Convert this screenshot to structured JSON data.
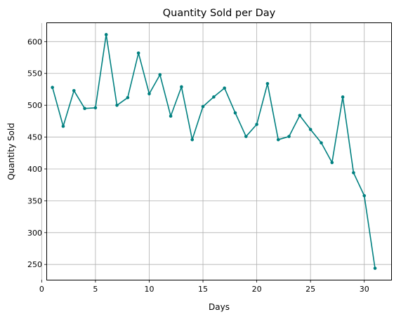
{
  "chart_data": {
    "type": "line",
    "title": "Quantity Sold per Day",
    "xlabel": "Days",
    "ylabel": "Quantity Sold",
    "xlim": [
      0.5,
      32.5
    ],
    "ylim": [
      226,
      629
    ],
    "xticks": [
      0,
      5,
      10,
      15,
      20,
      25,
      30
    ],
    "yticks": [
      250,
      300,
      350,
      400,
      450,
      500,
      550,
      600
    ],
    "grid": true,
    "line_color": "#008080",
    "x": [
      1,
      2,
      3,
      4,
      5,
      6,
      7,
      8,
      9,
      10,
      11,
      12,
      13,
      14,
      15,
      16,
      17,
      18,
      19,
      20,
      21,
      22,
      23,
      24,
      25,
      26,
      27,
      28,
      29,
      30,
      31
    ],
    "values": [
      528,
      467,
      523,
      495,
      496,
      611,
      500,
      512,
      582,
      518,
      548,
      483,
      529,
      446,
      498,
      513,
      527,
      488,
      451,
      470,
      534,
      446,
      451,
      484,
      462,
      441,
      410,
      513,
      394,
      358,
      244
    ]
  }
}
